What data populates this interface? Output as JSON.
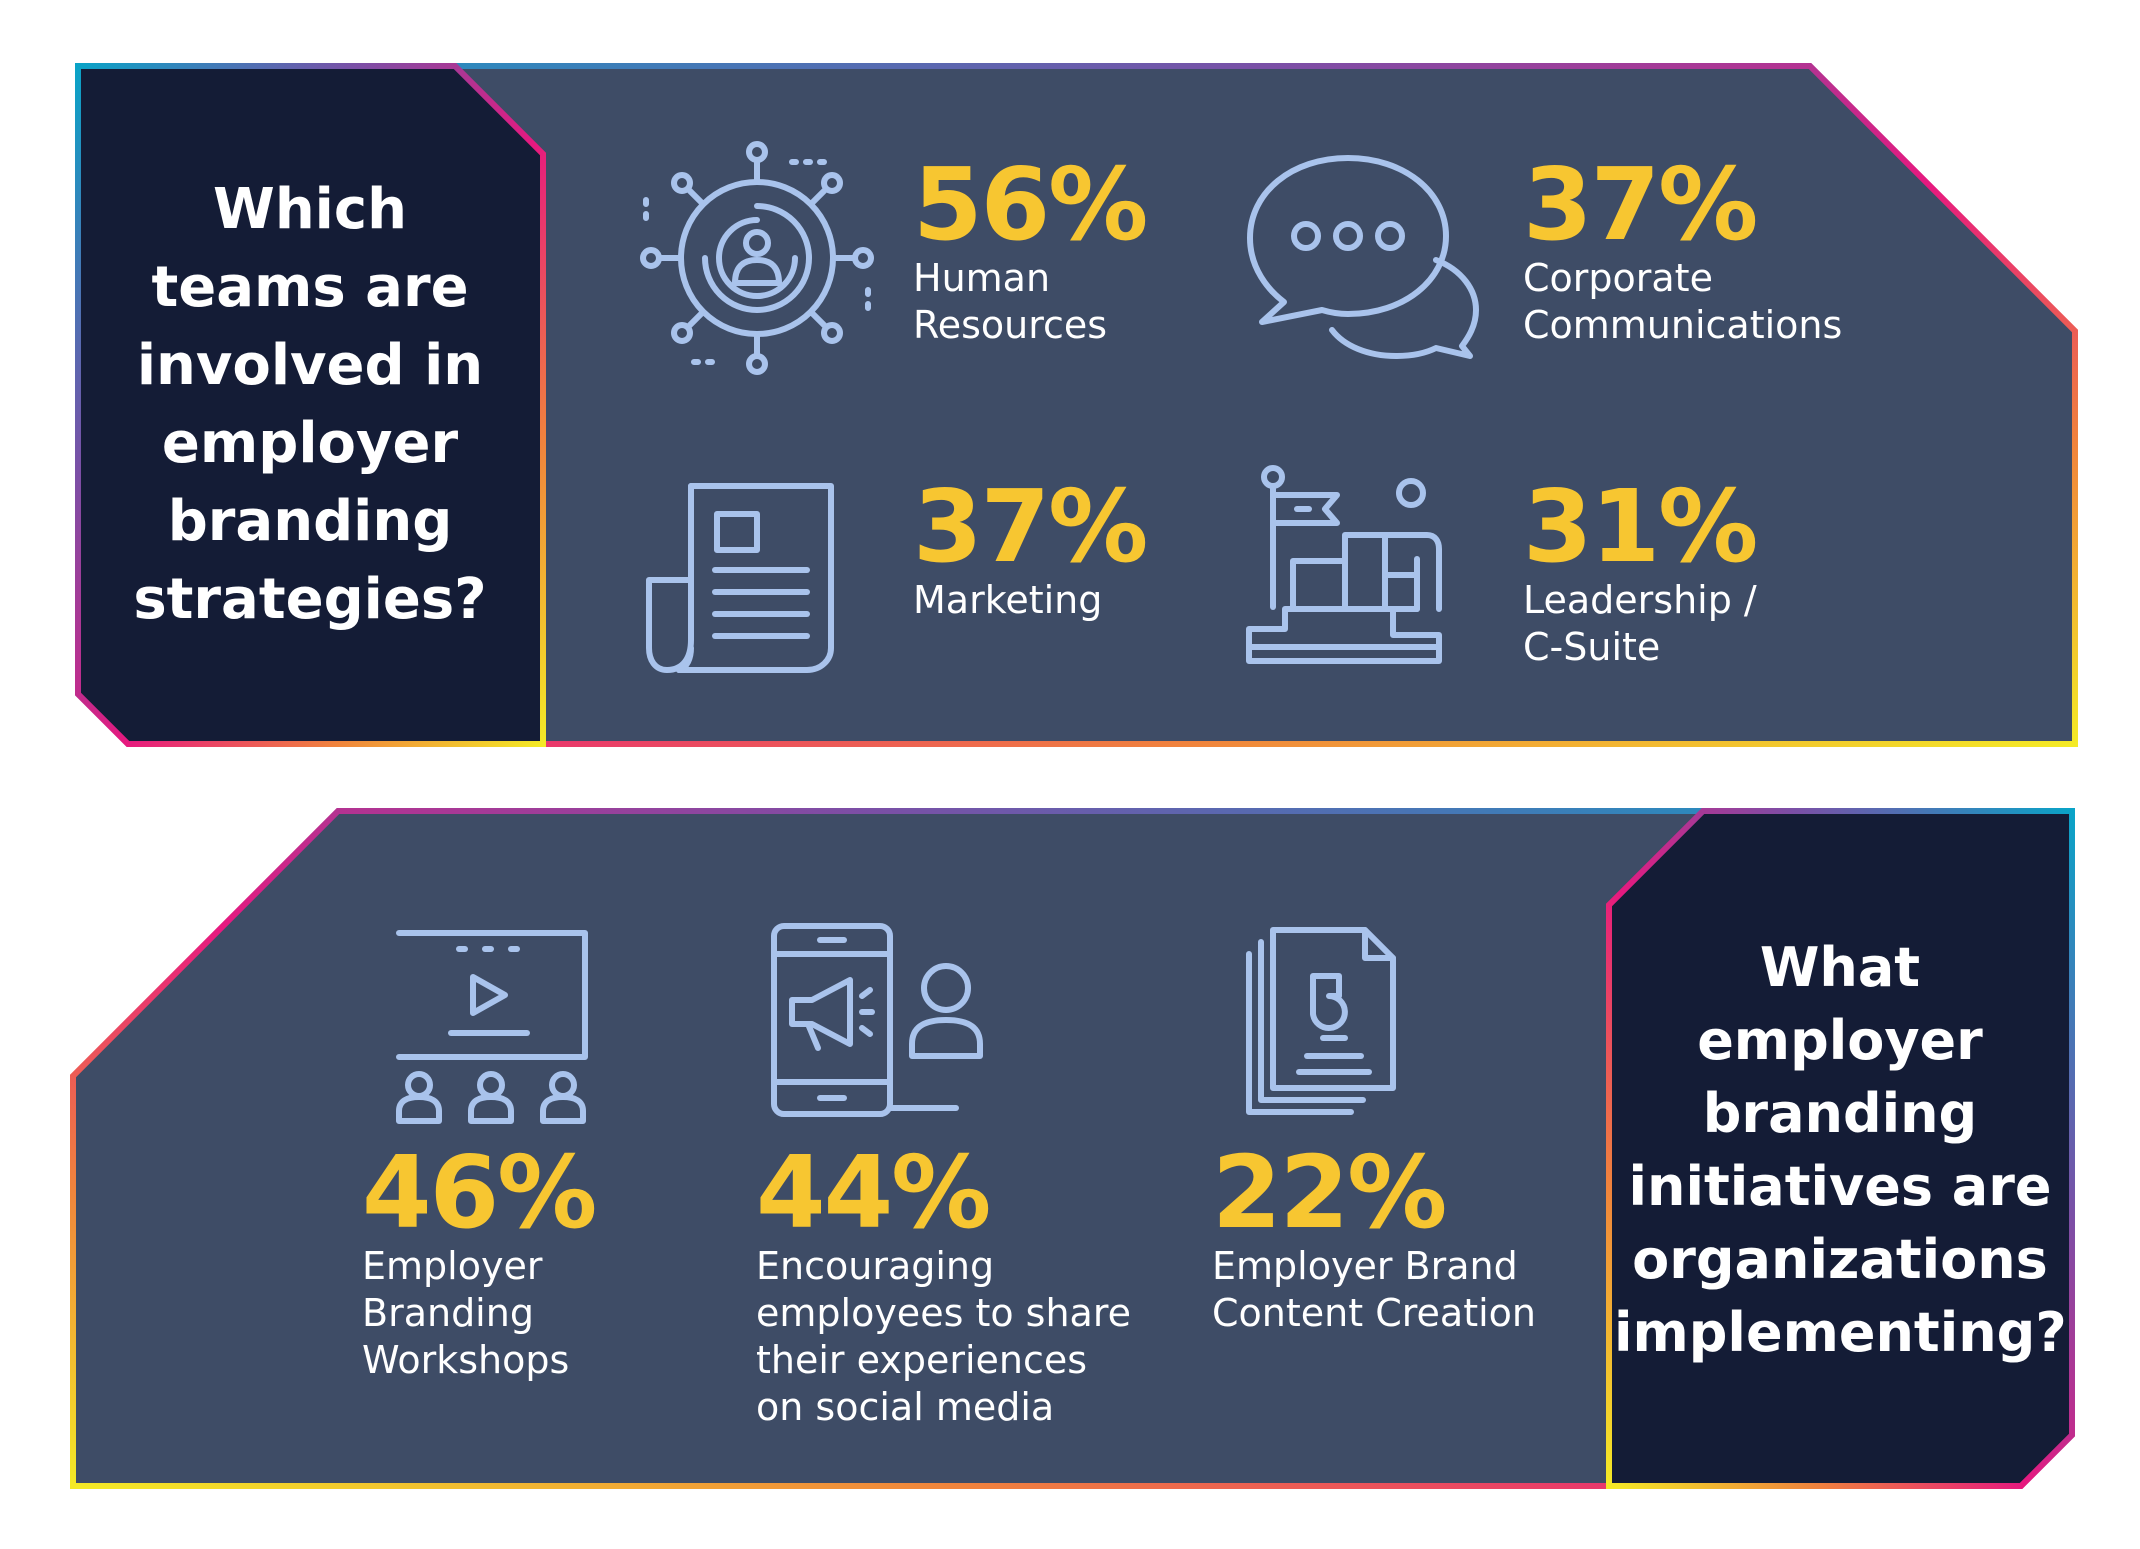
{
  "colors": {
    "panel": "#3e4c66",
    "heading_box": "#141c36",
    "percent": "#f7c631",
    "icon_stroke": "#a9c3ec",
    "text": "#ffffff",
    "gradient": [
      "#0aa3c7",
      "#7b4fa6",
      "#e6197f",
      "#f0843c",
      "#f4ea26"
    ]
  },
  "chart_data": [
    {
      "type": "table",
      "title": "Which teams are involved in employer branding strategies?",
      "title_lines": [
        "Which",
        "teams are",
        "involved in",
        "employer",
        "branding",
        "strategies?"
      ],
      "unit": "%",
      "categories": [
        "Human Resources",
        "Corporate Communications",
        "Marketing",
        "Leadership / C-Suite"
      ],
      "values": [
        56,
        37,
        37,
        31
      ],
      "items": [
        {
          "value": 56,
          "percent_label": "56%",
          "label_lines": [
            "Human",
            "Resources"
          ],
          "icon": "people-network-icon"
        },
        {
          "value": 37,
          "percent_label": "37%",
          "label_lines": [
            "Corporate",
            "Communications"
          ],
          "icon": "chat-bubbles-icon"
        },
        {
          "value": 37,
          "percent_label": "37%",
          "label_lines": [
            "Marketing"
          ],
          "icon": "newspaper-icon"
        },
        {
          "value": 31,
          "percent_label": "31%",
          "label_lines": [
            "Leadership /",
            "C-Suite"
          ],
          "icon": "leader-podium-flag-icon"
        }
      ]
    },
    {
      "type": "table",
      "title": "What employer branding initiatives are organizations implementing?",
      "title_lines": [
        "What",
        "employer",
        "branding",
        "initiatives are",
        "organizations",
        "implementing?"
      ],
      "unit": "%",
      "categories": [
        "Employer Branding Workshops",
        "Encouraging employees to share their experiences on social media",
        "Employer Brand Content Creation"
      ],
      "values": [
        46,
        44,
        22
      ],
      "items": [
        {
          "value": 46,
          "percent_label": "46%",
          "label_lines": [
            "Employer",
            "Branding",
            "Workshops"
          ],
          "icon": "video-presentation-audience-icon"
        },
        {
          "value": 44,
          "percent_label": "44%",
          "label_lines": [
            "Encouraging",
            "employees to share",
            "their experiences",
            "on social media"
          ],
          "icon": "phone-megaphone-person-icon"
        },
        {
          "value": 22,
          "percent_label": "22%",
          "label_lines": [
            "Employer Brand",
            "Content Creation"
          ],
          "icon": "document-stack-icon"
        }
      ]
    }
  ]
}
